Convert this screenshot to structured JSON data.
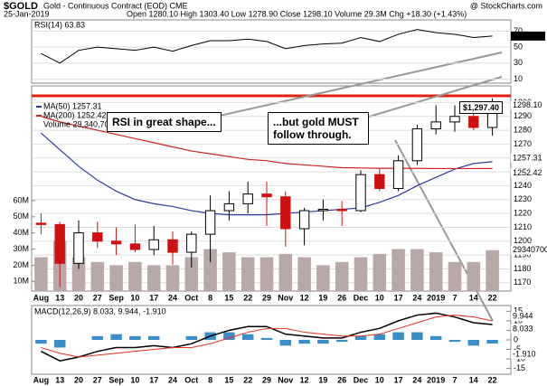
{
  "chart_data": [
    {
      "type": "line",
      "title": "RSI(14) 63.83",
      "last_label": "63.83",
      "color": "#000000",
      "values": [
        42,
        30,
        46,
        50,
        48,
        46,
        50,
        45,
        52,
        58,
        58,
        60,
        57,
        48,
        52,
        54,
        55,
        62,
        57,
        66,
        72,
        68,
        66,
        62,
        63.83
      ],
      "ylim": [
        5,
        84
      ],
      "yticks": [
        70,
        50,
        30,
        10
      ]
    },
    {
      "type": "candlestick",
      "title": "$GOLD",
      "subtitle": "Gold - Continuous Contract (EOD) CME",
      "source": "@ StockCharts.com",
      "date": "25-Jan-2019",
      "quote": "Open 1280.10  High 1303.40  Low 1278.90  Close 1298.10  Volume 29.3M  Chg +18.30 (+1.43%)",
      "close_label": "1298.10",
      "high_label": "$1,297.40",
      "categories": [
        "Aug",
        "13",
        "20",
        "27",
        "Sep",
        "10",
        "17",
        "24",
        "Oct",
        "8",
        "15",
        "22",
        "29",
        "Nov",
        "12",
        "19",
        "26",
        "Dec",
        "10",
        "17",
        "24",
        "2019",
        "7",
        "14",
        "22"
      ],
      "open": [
        1213,
        1212,
        1184,
        1206,
        1200,
        1198,
        1194,
        1201,
        1192,
        1205,
        1222,
        1227,
        1234,
        1232,
        1209,
        1222,
        1223,
        1222,
        1248,
        1238,
        1258,
        1281,
        1286,
        1290,
        1282
      ],
      "high": [
        1220,
        1214,
        1215,
        1214,
        1210,
        1212,
        1211,
        1207,
        1207,
        1233,
        1236,
        1243,
        1243,
        1236,
        1224,
        1230,
        1229,
        1251,
        1252,
        1262,
        1284,
        1298,
        1298,
        1297,
        1303
      ],
      "low": [
        1205,
        1167,
        1180,
        1195,
        1190,
        1192,
        1190,
        1183,
        1181,
        1185,
        1215,
        1220,
        1211,
        1196,
        1197,
        1215,
        1211,
        1221,
        1236,
        1236,
        1255,
        1277,
        1279,
        1280,
        1276
      ],
      "close": [
        1212,
        1184,
        1206,
        1200,
        1198,
        1194,
        1201,
        1192,
        1205,
        1222,
        1227,
        1234,
        1232,
        1209,
        1222,
        1223,
        1222,
        1248,
        1238,
        1258,
        1281,
        1286,
        1290,
        1282,
        1298
      ],
      "series": [
        {
          "name": "MA(50) 1257.31",
          "last_label": "1257.31",
          "color": "#2b3a9e",
          "values": [
            1278,
            1266,
            1254,
            1244,
            1236,
            1230,
            1227,
            1225,
            1222,
            1220,
            1219,
            1219,
            1219,
            1220,
            1221,
            1222,
            1223,
            1224,
            1228,
            1233,
            1240,
            1246,
            1252,
            1256,
            1257.31
          ]
        },
        {
          "name": "MA(200) 1252.42",
          "last_label": "1252.42",
          "color": "#cc2222",
          "values": [
            1290,
            1286,
            1283,
            1280,
            1277,
            1274,
            1271,
            1268,
            1265,
            1263,
            1261,
            1259,
            1258,
            1256,
            1255,
            1254,
            1253,
            1252.8,
            1252.6,
            1252.5,
            1252.5,
            1252.4,
            1252.4,
            1252.4,
            1252.42
          ]
        }
      ],
      "volume": {
        "name": "Volume 29,340,700",
        "last_label": "29340700",
        "color": "#b8a8a8",
        "values": [
          25,
          35,
          25,
          22,
          20,
          22,
          20,
          20,
          25,
          30,
          28,
          25,
          25,
          27,
          25,
          20,
          22,
          25,
          27,
          30,
          30,
          28,
          22,
          22,
          29.34
        ]
      },
      "ylim": [
        1164,
        1312
      ],
      "yticks": [
        1300,
        1290,
        1280,
        1270,
        1260,
        1250,
        1240,
        1230,
        1220,
        1210,
        1200,
        1190,
        1180,
        1170
      ],
      "volume_ylim": [
        4,
        131
      ],
      "volume_ticks": [
        {
          "value": 60,
          "label": "60M"
        },
        {
          "value": 50,
          "label": "50M"
        },
        {
          "value": 40,
          "label": "40M"
        },
        {
          "value": 30,
          "label": "30M"
        },
        {
          "value": 20,
          "label": "20M"
        },
        {
          "value": 10,
          "label": "10M"
        }
      ],
      "annotations": [
        "RSI in great shape...",
        "...but gold MUST follow through."
      ]
    },
    {
      "type": "macd",
      "title": "MACD(12,26,9) 8.033, 9.944, -1.910",
      "categories": [
        "Aug",
        "13",
        "20",
        "27",
        "Sep",
        "10",
        "17",
        "24",
        "Oct",
        "8",
        "15",
        "22",
        "29",
        "Nov",
        "12",
        "19",
        "26",
        "Dec",
        "10",
        "17",
        "24",
        "2019",
        "7",
        "14",
        "22"
      ],
      "series": [
        {
          "name": "MACD",
          "last_label": "8.033",
          "color": "#000000",
          "values": [
            -6,
            -11,
            -9,
            -6,
            -4,
            -4,
            -3,
            -4,
            -2,
            2,
            5,
            7,
            7,
            3,
            2,
            1,
            1,
            4,
            6,
            10,
            13,
            14,
            12,
            9,
            8.033
          ]
        },
        {
          "name": "Signal",
          "last_label": "9.944",
          "color": "#e03020",
          "values": [
            -4,
            -7,
            -9,
            -8,
            -7,
            -6,
            -5,
            -4,
            -4,
            -2,
            1,
            4,
            6,
            6,
            4,
            3,
            2,
            2,
            3,
            6,
            9,
            12,
            13,
            12,
            9.944
          ]
        }
      ],
      "histogram": {
        "last_label": "-1.910",
        "color": "#3a8fc8",
        "values": [
          -2,
          -4,
          0,
          2,
          3,
          2,
          2,
          0,
          2,
          4,
          4,
          3,
          1,
          -3,
          -2,
          -2,
          -1,
          2,
          3,
          4,
          4,
          2,
          -1,
          -3,
          -1.91
        ]
      },
      "ylim": [
        -18,
        18
      ],
      "yticks": [
        15,
        10,
        5,
        0,
        -5,
        -10,
        -15
      ]
    }
  ]
}
